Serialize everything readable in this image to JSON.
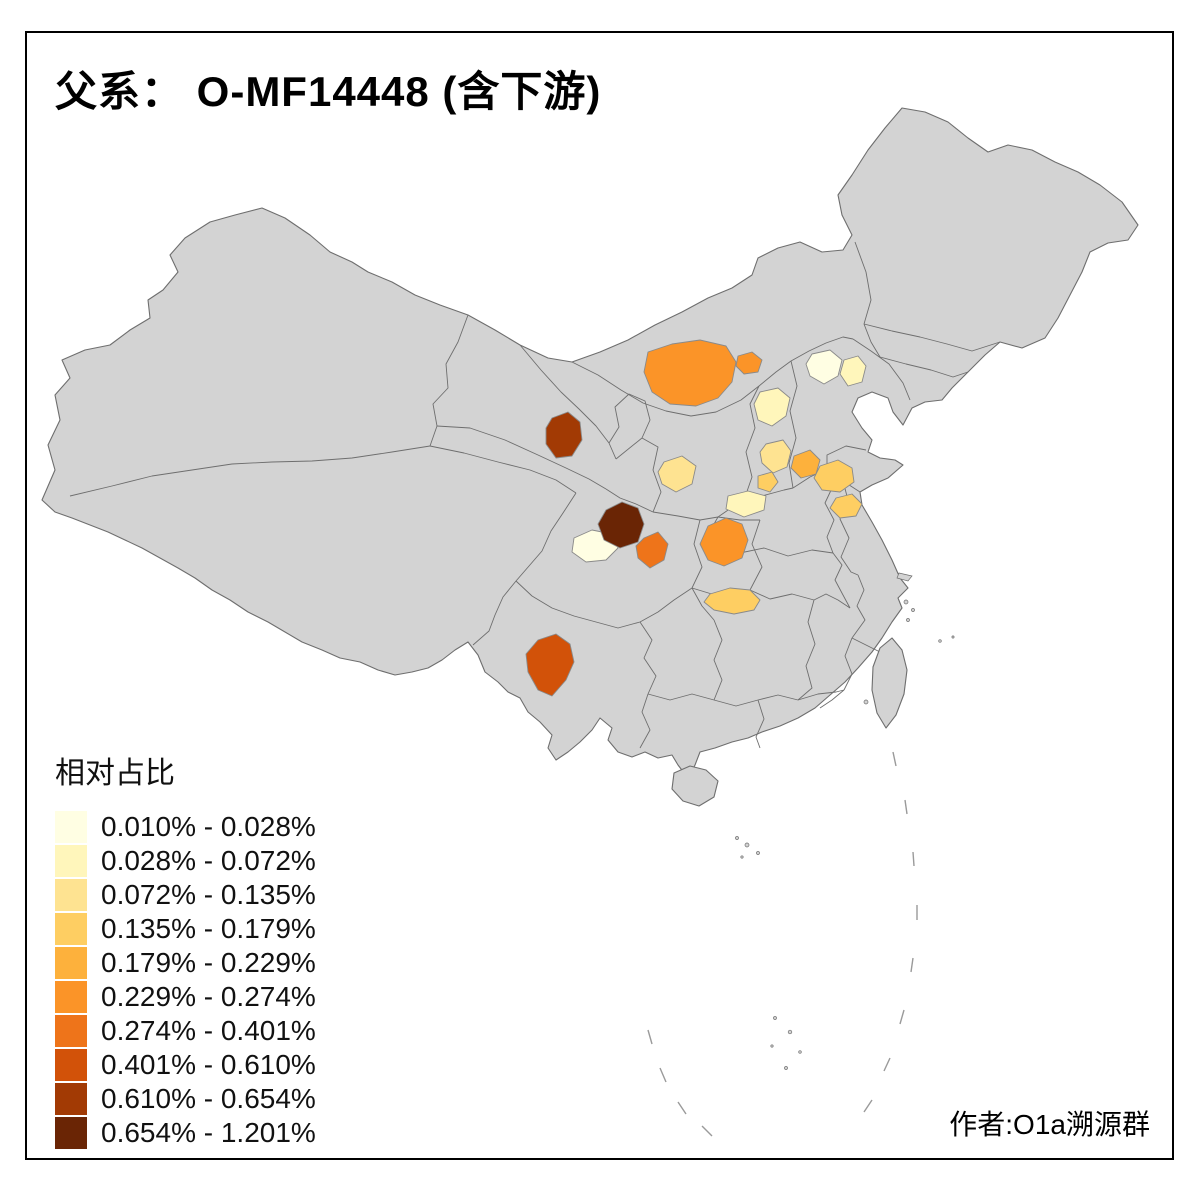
{
  "title": "父系： O-MF14448 (含下游)",
  "legend": {
    "title": "相对占比",
    "items": [
      {
        "label": "0.010% - 0.028%",
        "color": "#FFFEE3"
      },
      {
        "label": "0.028% - 0.072%",
        "color": "#FFF6BB"
      },
      {
        "label": "0.072% - 0.135%",
        "color": "#FEE391"
      },
      {
        "label": "0.135% - 0.179%",
        "color": "#FECE62"
      },
      {
        "label": "0.179% - 0.229%",
        "color": "#FDB13C"
      },
      {
        "label": "0.229% - 0.274%",
        "color": "#FB9428"
      },
      {
        "label": "0.274% - 0.401%",
        "color": "#EE741A"
      },
      {
        "label": "0.401% - 0.610%",
        "color": "#D25209"
      },
      {
        "label": "0.610% - 0.654%",
        "color": "#A23A04"
      },
      {
        "label": "0.654% - 1.201%",
        "color": "#6A2505"
      }
    ]
  },
  "attribution": "作者:O1a溯源群",
  "map": {
    "land_fill": "#D3D3D3",
    "border_color": "#6E6E6E",
    "sea_fill": "#FFFFFF",
    "regions": [
      {
        "id": "r1",
        "class_index": 5
      },
      {
        "id": "r2",
        "class_index": 5
      },
      {
        "id": "r3",
        "class_index": 0
      },
      {
        "id": "r4",
        "class_index": 1
      },
      {
        "id": "r5",
        "class_index": 1
      },
      {
        "id": "r6",
        "class_index": 2
      },
      {
        "id": "r7",
        "class_index": 4
      },
      {
        "id": "r8",
        "class_index": 3
      },
      {
        "id": "r9",
        "class_index": 1
      },
      {
        "id": "r10",
        "class_index": 3
      },
      {
        "id": "r11",
        "class_index": 3
      },
      {
        "id": "r12",
        "class_index": 8
      },
      {
        "id": "r13",
        "class_index": 9
      },
      {
        "id": "r14",
        "class_index": 6
      },
      {
        "id": "r15",
        "class_index": 0
      },
      {
        "id": "r16",
        "class_index": 5
      },
      {
        "id": "r17",
        "class_index": 7
      },
      {
        "id": "r18",
        "class_index": 3
      },
      {
        "id": "r19",
        "class_index": 2
      }
    ]
  }
}
